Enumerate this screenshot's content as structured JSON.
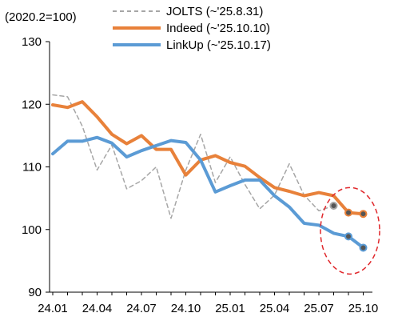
{
  "chart_data": {
    "type": "line",
    "unit_label": "(2020.2=100)",
    "x": [
      "24.01",
      "24.02",
      "24.03",
      "24.04",
      "24.05",
      "24.06",
      "24.07",
      "24.08",
      "24.09",
      "24.10",
      "24.11",
      "24.12",
      "25.01",
      "25.02",
      "25.03",
      "25.04",
      "25.05",
      "25.06",
      "25.07",
      "25.08",
      "25.09",
      "25.10"
    ],
    "x_tick_labels": [
      "24.01",
      "24.04",
      "24.07",
      "24.10",
      "25.01",
      "25.04",
      "25.07",
      "25.10"
    ],
    "ylim": [
      90,
      130
    ],
    "y_ticks": [
      90,
      100,
      110,
      120,
      130
    ],
    "grid": false,
    "legend_position": "top",
    "series": [
      {
        "name": "JOLTS (~'25.8.31)",
        "color": "#a6a6a6",
        "style": "dashed",
        "values": [
          121.5,
          121.2,
          116.5,
          109.5,
          113.5,
          106.5,
          107.8,
          110,
          101.8,
          109.5,
          115.2,
          107.5,
          111.6,
          107.2,
          103.3,
          105.5,
          110.5,
          105.5,
          103,
          103.8,
          null,
          null
        ],
        "highlighted_points": [
          {
            "x": "25.08",
            "y": 103.8
          }
        ]
      },
      {
        "name": "Indeed (~'25.10.10)",
        "color": "#e8813a",
        "style": "solid",
        "values": [
          119.9,
          119.5,
          120.4,
          118,
          115.2,
          113.7,
          115,
          112.8,
          112.8,
          108.7,
          111.1,
          111.8,
          110.7,
          110.1,
          108.3,
          106.7,
          106.1,
          105.4,
          105.9,
          105.4,
          102.7,
          102.5
        ],
        "highlighted_points": [
          {
            "x": "25.09",
            "y": 102.7
          },
          {
            "x": "25.10",
            "y": 102.5
          }
        ]
      },
      {
        "name": "LinkUp (~'25.10.17)",
        "color": "#5b9bd5",
        "style": "solid",
        "values": [
          112.1,
          114.1,
          114.1,
          114.7,
          113.8,
          111.6,
          112.6,
          113.4,
          114.2,
          113.9,
          111.1,
          106,
          107,
          107.9,
          107.9,
          105.4,
          103.6,
          101,
          100.7,
          99.4,
          98.9,
          97.1
        ],
        "highlighted_points": [
          {
            "x": "25.09",
            "y": 98.9
          },
          {
            "x": "25.10",
            "y": 97.1
          }
        ]
      }
    ]
  },
  "colors": {
    "axis": "#000000",
    "highlight_ellipse": "#e0282c",
    "marker_fill_dark": "#555555"
  }
}
